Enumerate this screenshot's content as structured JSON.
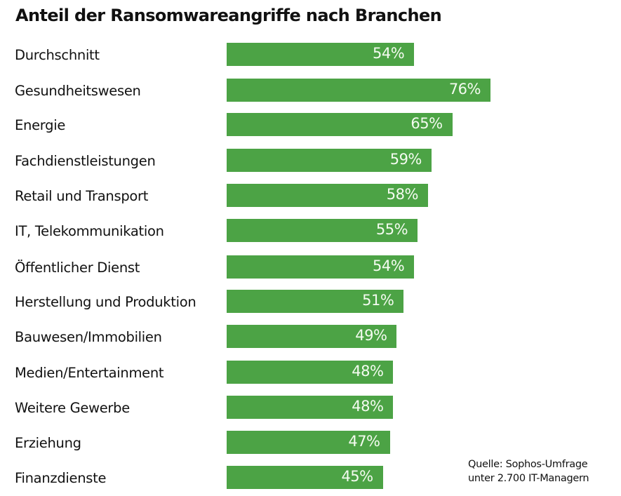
{
  "chart_data": {
    "type": "bar",
    "orientation": "horizontal",
    "title": "Anteil der Ransomwareangriffe nach Branchen",
    "xlabel": "",
    "ylabel": "",
    "unit": "%",
    "xlim": [
      0,
      76
    ],
    "grid": false,
    "legend": "none",
    "bar_color": "#4ca345",
    "categories": [
      "Durchschnitt",
      "Gesundheitswesen",
      "Energie",
      "Fachdienstleistungen",
      "Retail und Transport",
      "IT, Telekommunikation",
      "Öffentlicher Dienst",
      "Herstellung und Produktion",
      "Bauwesen/Immobilien",
      "Medien/Entertainment",
      "Weitere Gewerbe",
      "Erziehung",
      "Finanzdienste"
    ],
    "values": [
      54,
      76,
      65,
      59,
      58,
      55,
      54,
      51,
      49,
      48,
      48,
      47,
      45
    ],
    "value_labels": [
      "54%",
      "76%",
      "65%",
      "59%",
      "58%",
      "55%",
      "54%",
      "51%",
      "49%",
      "48%",
      "48%",
      "47%",
      "45%"
    ],
    "annotations": [
      "Quelle: Sophos-Umfrage",
      "unter 2.700 IT-Managern"
    ]
  },
  "source": {
    "line1": "Quelle: Sophos-Umfrage",
    "line2": "unter 2.700 IT-Managern"
  }
}
